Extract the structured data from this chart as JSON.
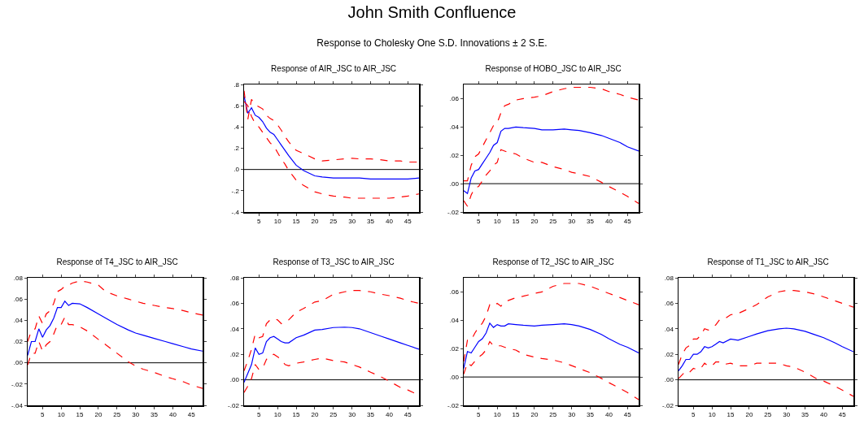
{
  "chart_data": [
    {
      "type": "line",
      "title": "Response of AIR_JSC to AIR_JSC",
      "annotations": [
        "John Smith Confluence",
        "Response to Cholesky One S.D. Innovations ± 2 S.E."
      ],
      "x": [
        1,
        2,
        3,
        4,
        5,
        6,
        7,
        8,
        9,
        10,
        11,
        12,
        13,
        15,
        17,
        20,
        22,
        25,
        28,
        30,
        32,
        35,
        38,
        40,
        43,
        45,
        48
      ],
      "xlim": [
        1,
        48
      ],
      "xticks": [
        5,
        10,
        15,
        20,
        25,
        30,
        35,
        40,
        45
      ],
      "ylim": [
        -0.4,
        0.8
      ],
      "yticks": [
        {
          "value": -0.4,
          "label": "-.4"
        },
        {
          "value": -0.2,
          "label": "-.2"
        },
        {
          "value": 0,
          "label": ".0"
        },
        {
          "value": 0.2,
          "label": ".2"
        },
        {
          "value": 0.4,
          "label": ".4"
        },
        {
          "value": 0.6,
          "label": ".6"
        },
        {
          "value": 0.8,
          "label": ".8"
        }
      ],
      "grid": false,
      "ref_lines": [
        {
          "axis": "y",
          "value": 0,
          "color": "#000000"
        }
      ],
      "series": [
        {
          "color": "#0000ff",
          "line_style": "solid",
          "values": [
            0.69,
            0.53,
            0.58,
            0.51,
            0.49,
            0.45,
            0.39,
            0.35,
            0.33,
            0.28,
            0.23,
            0.18,
            0.13,
            0.04,
            -0.01,
            -0.06,
            -0.07,
            -0.08,
            -0.08,
            -0.08,
            -0.08,
            -0.09,
            -0.09,
            -0.09,
            -0.09,
            -0.09,
            -0.08
          ]
        },
        {
          "color": "#ff0000",
          "line_style": "dashed",
          "values": [
            0.74,
            0.47,
            0.66,
            0.61,
            0.59,
            0.57,
            0.51,
            0.48,
            0.46,
            0.42,
            0.37,
            0.31,
            0.26,
            0.18,
            0.15,
            0.1,
            0.08,
            0.09,
            0.1,
            0.105,
            0.1,
            0.1,
            0.09,
            0.08,
            0.08,
            0.07,
            0.07
          ]
        },
        {
          "color": "#ff0000",
          "line_style": "dashed",
          "values": [
            0.64,
            0.6,
            0.5,
            0.43,
            0.4,
            0.35,
            0.3,
            0.25,
            0.22,
            0.16,
            0.1,
            0.05,
            -0.01,
            -0.1,
            -0.15,
            -0.21,
            -0.23,
            -0.25,
            -0.26,
            -0.27,
            -0.27,
            -0.27,
            -0.27,
            -0.27,
            -0.26,
            -0.25,
            -0.23
          ]
        }
      ]
    },
    {
      "type": "line",
      "title": "Response of HOBO_JSC to AIR_JSC",
      "x": [
        1,
        2,
        3,
        4,
        5,
        6,
        7,
        8,
        9,
        10,
        11,
        12,
        13,
        15,
        17,
        20,
        22,
        25,
        28,
        30,
        32,
        35,
        38,
        40,
        43,
        45,
        48
      ],
      "xlim": [
        1,
        48
      ],
      "xticks": [
        5,
        10,
        15,
        20,
        25,
        30,
        35,
        40,
        45
      ],
      "ylim": [
        -0.02,
        0.07
      ],
      "yticks": [
        {
          "value": -0.02,
          "label": "-.02"
        },
        {
          "value": 0,
          "label": ".00"
        },
        {
          "value": 0.02,
          "label": ".02"
        },
        {
          "value": 0.04,
          "label": ".04"
        },
        {
          "value": 0.06,
          "label": ".06"
        }
      ],
      "grid": false,
      "ref_lines": [
        {
          "axis": "y",
          "value": 0,
          "color": "#000000"
        }
      ],
      "series": [
        {
          "color": "#0000ff",
          "line_style": "solid",
          "values": [
            -0.005,
            -0.007,
            0.004,
            0.009,
            0.01,
            0.014,
            0.018,
            0.022,
            0.027,
            0.029,
            0.037,
            0.039,
            0.039,
            0.04,
            0.0395,
            0.039,
            0.038,
            0.038,
            0.0385,
            0.038,
            0.0375,
            0.036,
            0.034,
            0.032,
            0.029,
            0.026,
            0.023
          ]
        },
        {
          "color": "#ff0000",
          "line_style": "dashed",
          "values": [
            0.002,
            0.002,
            0.013,
            0.019,
            0.021,
            0.026,
            0.031,
            0.036,
            0.041,
            0.043,
            0.05,
            0.055,
            0.056,
            0.059,
            0.06,
            0.061,
            0.062,
            0.065,
            0.067,
            0.068,
            0.068,
            0.068,
            0.067,
            0.065,
            0.063,
            0.061,
            0.059
          ]
        },
        {
          "color": "#ff0000",
          "line_style": "dashed",
          "values": [
            -0.012,
            -0.016,
            -0.008,
            -0.003,
            -0.002,
            0.002,
            0.006,
            0.009,
            0.013,
            0.015,
            0.024,
            0.023,
            0.022,
            0.021,
            0.018,
            0.015,
            0.015,
            0.012,
            0.01,
            0.008,
            0.007,
            0.005,
            0.001,
            -0.002,
            -0.006,
            -0.009,
            -0.014
          ]
        }
      ]
    },
    {
      "type": "line",
      "title": "Response of T4_JSC to AIR_JSC",
      "x": [
        1,
        2,
        3,
        4,
        5,
        6,
        7,
        8,
        9,
        10,
        11,
        12,
        13,
        15,
        17,
        20,
        22,
        25,
        28,
        30,
        32,
        35,
        38,
        40,
        43,
        45,
        48
      ],
      "xlim": [
        1,
        48
      ],
      "xticks": [
        5,
        10,
        15,
        20,
        25,
        30,
        35,
        40,
        45
      ],
      "ylim": [
        -0.04,
        0.08
      ],
      "yticks": [
        {
          "value": -0.04,
          "label": "-.04"
        },
        {
          "value": -0.02,
          "label": "-.02"
        },
        {
          "value": 0,
          "label": ".00"
        },
        {
          "value": 0.02,
          "label": ".02"
        },
        {
          "value": 0.04,
          "label": ".04"
        },
        {
          "value": 0.06,
          "label": ".06"
        },
        {
          "value": 0.08,
          "label": ".08"
        }
      ],
      "grid": false,
      "ref_lines": [
        {
          "axis": "y",
          "value": 0,
          "color": "#000000"
        }
      ],
      "series": [
        {
          "color": "#0000ff",
          "line_style": "solid",
          "values": [
            0.007,
            0.02,
            0.02,
            0.032,
            0.024,
            0.031,
            0.035,
            0.042,
            0.052,
            0.052,
            0.058,
            0.054,
            0.056,
            0.0555,
            0.052,
            0.046,
            0.042,
            0.036,
            0.031,
            0.028,
            0.026,
            0.023,
            0.02,
            0.018,
            0.015,
            0.013,
            0.011
          ]
        },
        {
          "color": "#ff0000",
          "line_style": "dashed",
          "values": [
            0.02,
            0.03,
            0.032,
            0.044,
            0.037,
            0.046,
            0.049,
            0.056,
            0.067,
            0.069,
            0.072,
            0.073,
            0.075,
            0.077,
            0.076,
            0.073,
            0.067,
            0.063,
            0.06,
            0.058,
            0.056,
            0.054,
            0.052,
            0.051,
            0.049,
            0.047,
            0.045
          ]
        },
        {
          "color": "#ff0000",
          "line_style": "dashed",
          "values": [
            -0.002,
            0.009,
            0.009,
            0.02,
            0.011,
            0.017,
            0.02,
            0.027,
            0.036,
            0.036,
            0.043,
            0.036,
            0.036,
            0.034,
            0.03,
            0.022,
            0.017,
            0.009,
            0.001,
            -0.003,
            -0.006,
            -0.009,
            -0.013,
            -0.015,
            -0.018,
            -0.021,
            -0.024
          ]
        }
      ]
    },
    {
      "type": "line",
      "title": "Response of T3_JSC to AIR_JSC",
      "x": [
        1,
        2,
        3,
        4,
        5,
        6,
        7,
        8,
        9,
        10,
        11,
        12,
        13,
        15,
        17,
        20,
        22,
        25,
        28,
        30,
        32,
        35,
        38,
        40,
        43,
        45,
        48
      ],
      "xlim": [
        1,
        48
      ],
      "xticks": [
        5,
        10,
        15,
        20,
        25,
        30,
        35,
        40,
        45
      ],
      "ylim": [
        -0.02,
        0.08
      ],
      "yticks": [
        {
          "value": -0.02,
          "label": "-.02"
        },
        {
          "value": 0,
          "label": ".00"
        },
        {
          "value": 0.02,
          "label": ".02"
        },
        {
          "value": 0.04,
          "label": ".04"
        },
        {
          "value": 0.06,
          "label": ".06"
        },
        {
          "value": 0.08,
          "label": ".08"
        }
      ],
      "grid": false,
      "ref_lines": [
        {
          "axis": "y",
          "value": 0,
          "color": "#000000"
        }
      ],
      "series": [
        {
          "color": "#0000ff",
          "line_style": "solid",
          "values": [
            -0.002,
            0.005,
            0.012,
            0.025,
            0.02,
            0.021,
            0.03,
            0.033,
            0.034,
            0.032,
            0.03,
            0.029,
            0.029,
            0.033,
            0.035,
            0.039,
            0.0395,
            0.041,
            0.0413,
            0.041,
            0.04,
            0.037,
            0.034,
            0.032,
            0.029,
            0.027,
            0.024
          ]
        },
        {
          "color": "#ff0000",
          "line_style": "dashed",
          "values": [
            0.007,
            0.015,
            0.024,
            0.036,
            0.033,
            0.034,
            0.044,
            0.047,
            0.048,
            0.047,
            0.044,
            0.046,
            0.047,
            0.053,
            0.056,
            0.061,
            0.062,
            0.067,
            0.069,
            0.07,
            0.07,
            0.069,
            0.067,
            0.066,
            0.064,
            0.062,
            0.06
          ]
        },
        {
          "color": "#ff0000",
          "line_style": "dashed",
          "values": [
            -0.01,
            -0.005,
            0.001,
            0.012,
            0.008,
            0.009,
            0.016,
            0.019,
            0.02,
            0.018,
            0.016,
            0.012,
            0.011,
            0.013,
            0.014,
            0.016,
            0.017,
            0.015,
            0.014,
            0.012,
            0.01,
            0.006,
            0.002,
            -0.001,
            -0.006,
            -0.008,
            -0.012
          ]
        }
      ]
    },
    {
      "type": "line",
      "title": "Response of T2_JSC to AIR_JSC",
      "x": [
        1,
        2,
        3,
        4,
        5,
        6,
        7,
        8,
        9,
        10,
        11,
        12,
        13,
        15,
        17,
        20,
        22,
        25,
        28,
        30,
        32,
        35,
        38,
        40,
        43,
        45,
        48
      ],
      "xlim": [
        1,
        48
      ],
      "xticks": [
        5,
        10,
        15,
        20,
        25,
        30,
        35,
        40,
        45
      ],
      "ylim": [
        -0.02,
        0.07
      ],
      "yticks": [
        {
          "value": -0.02,
          "label": "-.02"
        },
        {
          "value": 0,
          "label": ".00"
        },
        {
          "value": 0.02,
          "label": ".02"
        },
        {
          "value": 0.04,
          "label": ".04"
        },
        {
          "value": 0.06,
          "label": ".06"
        }
      ],
      "grid": false,
      "ref_lines": [
        {
          "axis": "y",
          "value": 0,
          "color": "#000000"
        }
      ],
      "series": [
        {
          "color": "#0000ff",
          "line_style": "solid",
          "values": [
            0.006,
            0.018,
            0.017,
            0.021,
            0.025,
            0.027,
            0.031,
            0.038,
            0.035,
            0.037,
            0.036,
            0.036,
            0.0375,
            0.037,
            0.0365,
            0.036,
            0.0365,
            0.037,
            0.0375,
            0.037,
            0.036,
            0.0335,
            0.03,
            0.027,
            0.023,
            0.021,
            0.017
          ]
        },
        {
          "color": "#ff0000",
          "line_style": "dashed",
          "values": [
            0.011,
            0.026,
            0.026,
            0.031,
            0.035,
            0.038,
            0.043,
            0.051,
            0.05,
            0.052,
            0.05,
            0.053,
            0.054,
            0.056,
            0.057,
            0.059,
            0.06,
            0.064,
            0.066,
            0.066,
            0.066,
            0.064,
            0.061,
            0.059,
            0.056,
            0.054,
            0.051
          ]
        },
        {
          "color": "#ff0000",
          "line_style": "dashed",
          "values": [
            0.002,
            0.01,
            0.008,
            0.011,
            0.014,
            0.016,
            0.019,
            0.025,
            0.022,
            0.022,
            0.022,
            0.021,
            0.02,
            0.019,
            0.016,
            0.014,
            0.013,
            0.012,
            0.01,
            0.008,
            0.006,
            0.003,
            -0.001,
            -0.004,
            -0.008,
            -0.011,
            -0.016
          ]
        }
      ]
    },
    {
      "type": "line",
      "title": "Response of T1_JSC to AIR_JSC",
      "x": [
        1,
        2,
        3,
        4,
        5,
        6,
        7,
        8,
        9,
        10,
        11,
        12,
        13,
        15,
        17,
        20,
        22,
        25,
        28,
        30,
        32,
        35,
        38,
        40,
        43,
        45,
        48
      ],
      "xlim": [
        1,
        48
      ],
      "xticks": [
        5,
        10,
        15,
        20,
        25,
        30,
        35,
        40,
        45
      ],
      "ylim": [
        -0.02,
        0.08
      ],
      "yticks": [
        {
          "value": -0.02,
          "label": "-.02"
        },
        {
          "value": 0,
          "label": ".00"
        },
        {
          "value": 0.02,
          "label": ".02"
        },
        {
          "value": 0.04,
          "label": ".04"
        },
        {
          "value": 0.06,
          "label": ".06"
        },
        {
          "value": 0.08,
          "label": ".08"
        }
      ],
      "grid": false,
      "ref_lines": [
        {
          "axis": "y",
          "value": 0,
          "color": "#000000"
        }
      ],
      "series": [
        {
          "color": "#0000ff",
          "line_style": "solid",
          "values": [
            0.007,
            0.011,
            0.016,
            0.016,
            0.02,
            0.02,
            0.022,
            0.026,
            0.025,
            0.026,
            0.028,
            0.03,
            0.029,
            0.032,
            0.031,
            0.034,
            0.036,
            0.0385,
            0.04,
            0.0405,
            0.04,
            0.038,
            0.035,
            0.033,
            0.029,
            0.026,
            0.022
          ]
        },
        {
          "color": "#ff0000",
          "line_style": "dashed",
          "values": [
            0.012,
            0.02,
            0.025,
            0.027,
            0.032,
            0.032,
            0.035,
            0.04,
            0.039,
            0.041,
            0.043,
            0.047,
            0.047,
            0.051,
            0.052,
            0.056,
            0.059,
            0.065,
            0.069,
            0.07,
            0.07,
            0.069,
            0.067,
            0.065,
            0.062,
            0.06,
            0.057
          ]
        },
        {
          "color": "#ff0000",
          "line_style": "dashed",
          "values": [
            0.001,
            0.004,
            0.007,
            0.006,
            0.009,
            0.008,
            0.009,
            0.013,
            0.011,
            0.011,
            0.014,
            0.014,
            0.012,
            0.013,
            0.011,
            0.011,
            0.013,
            0.013,
            0.013,
            0.011,
            0.01,
            0.006,
            0.001,
            -0.001,
            -0.005,
            -0.008,
            -0.013
          ]
        }
      ]
    }
  ]
}
